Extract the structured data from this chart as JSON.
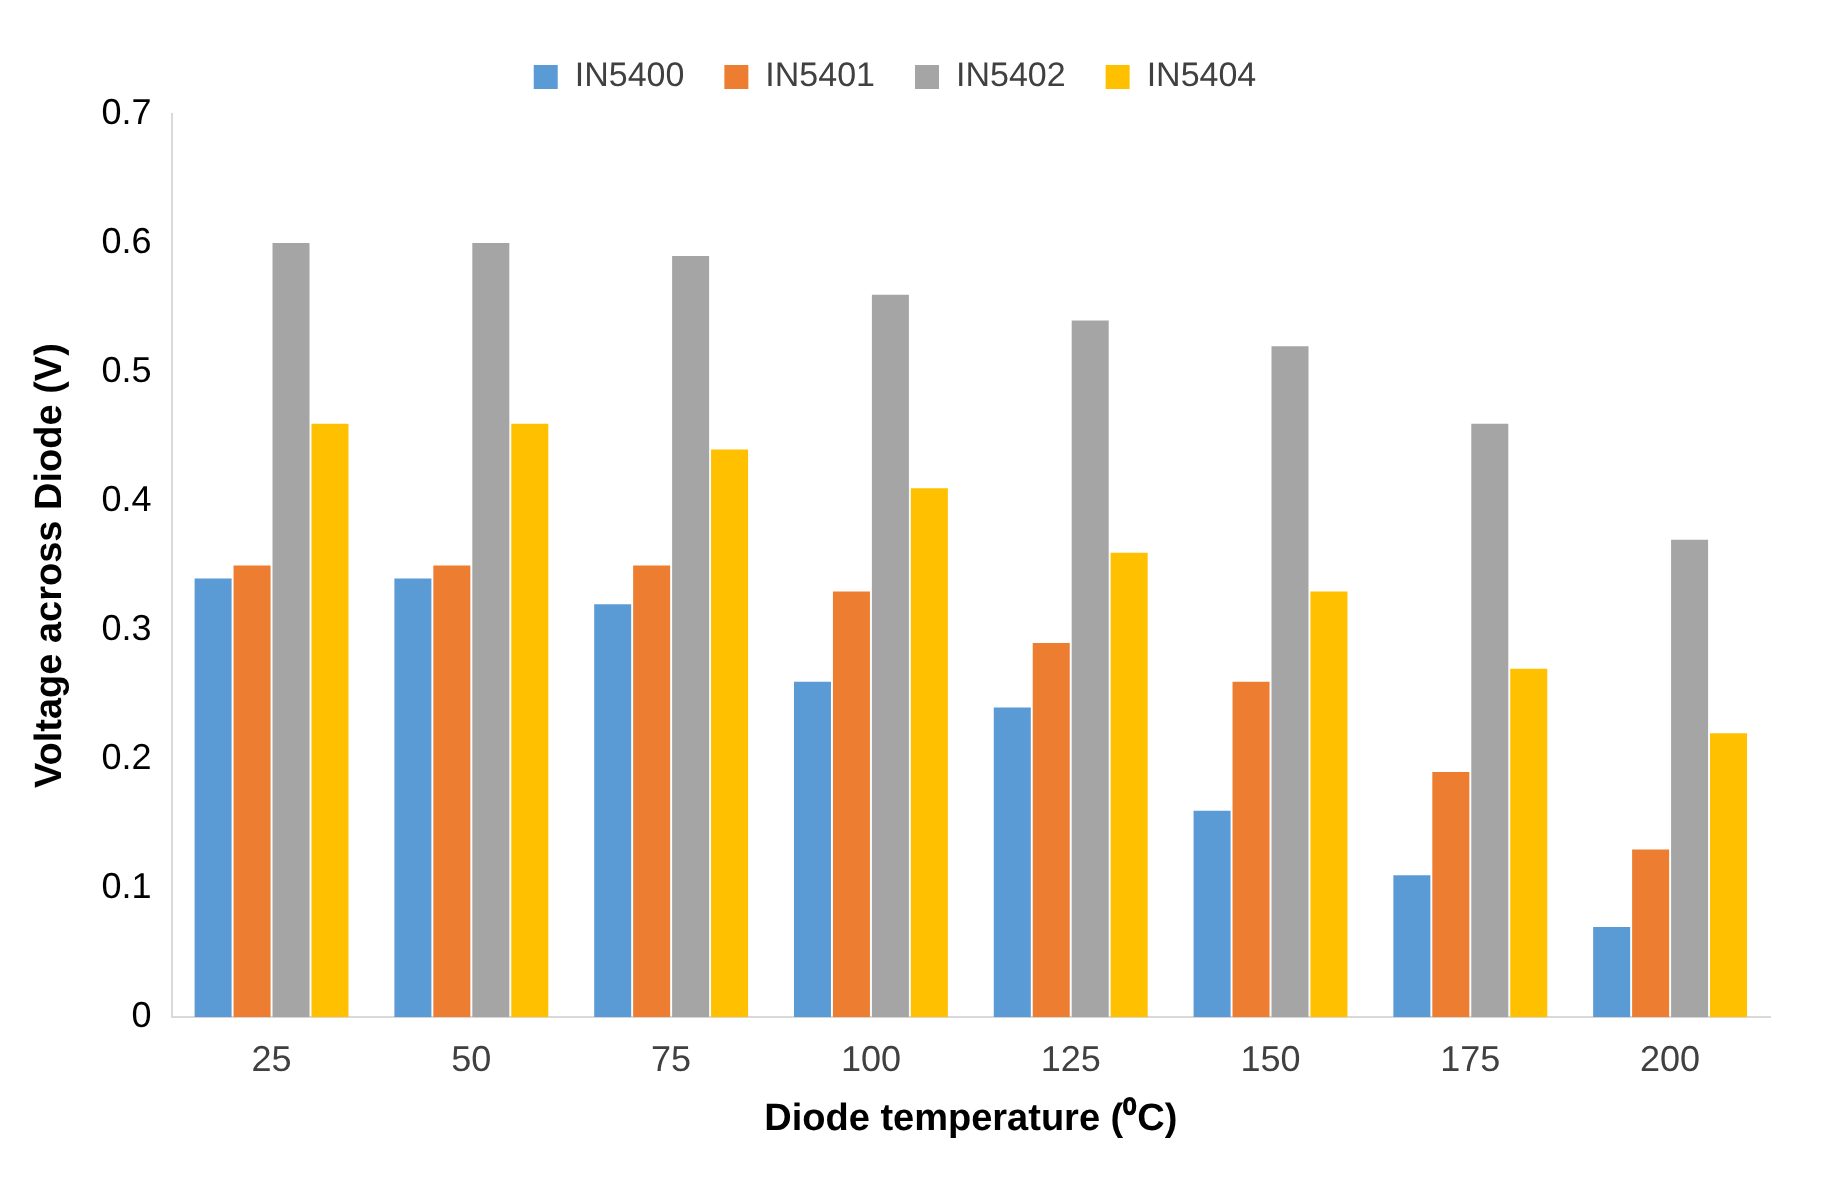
{
  "chart_data": {
    "type": "bar",
    "xlabel": "Diode temperature (⁰C)",
    "ylabel": "Voltage across Diode (V)",
    "categories": [
      "25",
      "50",
      "75",
      "100",
      "125",
      "150",
      "175",
      "200"
    ],
    "series": [
      {
        "name": "IN5400",
        "color": "#5b9bd5",
        "values": [
          0.34,
          0.34,
          0.32,
          0.26,
          0.24,
          0.16,
          0.11,
          0.07
        ]
      },
      {
        "name": "IN5401",
        "color": "#ed7d31",
        "values": [
          0.35,
          0.35,
          0.35,
          0.33,
          0.29,
          0.26,
          0.19,
          0.13
        ]
      },
      {
        "name": "IN5402",
        "color": "#a5a5a5",
        "values": [
          0.6,
          0.6,
          0.59,
          0.56,
          0.54,
          0.52,
          0.46,
          0.37
        ]
      },
      {
        "name": "IN5404",
        "color": "#ffc000",
        "values": [
          0.46,
          0.46,
          0.44,
          0.41,
          0.36,
          0.33,
          0.27,
          0.22
        ]
      }
    ],
    "ylim": [
      0,
      0.7
    ],
    "yticks": [
      0,
      0.1,
      0.2,
      0.3,
      0.4,
      0.5,
      0.6,
      0.7
    ],
    "grid": false,
    "legend": "top"
  }
}
